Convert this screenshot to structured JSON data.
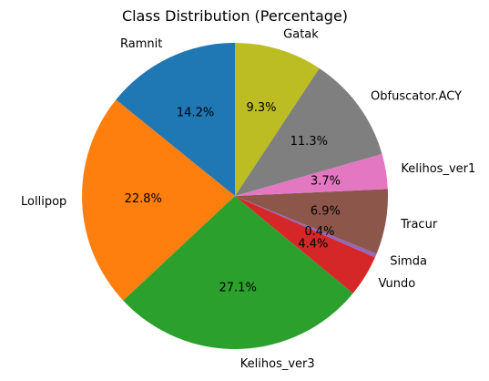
{
  "chart_data": {
    "type": "pie",
    "title": "Class Distribution (Percentage)",
    "start_angle_deg": 90,
    "direction": "counterclockwise",
    "labels": [
      "Ramnit",
      "Lollipop",
      "Kelihos_ver3",
      "Vundo",
      "Simda",
      "Tracur",
      "Kelihos_ver1",
      "Obfuscator.ACY",
      "Gatak"
    ],
    "values": [
      14.2,
      22.8,
      27.1,
      4.4,
      0.4,
      6.9,
      3.7,
      11.3,
      9.3
    ],
    "value_labels": [
      "14.2%",
      "22.8%",
      "27.1%",
      "4.4%",
      "0.4%",
      "6.9%",
      "3.7%",
      "11.3%",
      "9.3%"
    ],
    "colors": [
      "#1f77b4",
      "#ff7f0e",
      "#2ca02c",
      "#d62728",
      "#9467bd",
      "#8c564b",
      "#e377c2",
      "#7f7f7f",
      "#bcbd22"
    ]
  }
}
